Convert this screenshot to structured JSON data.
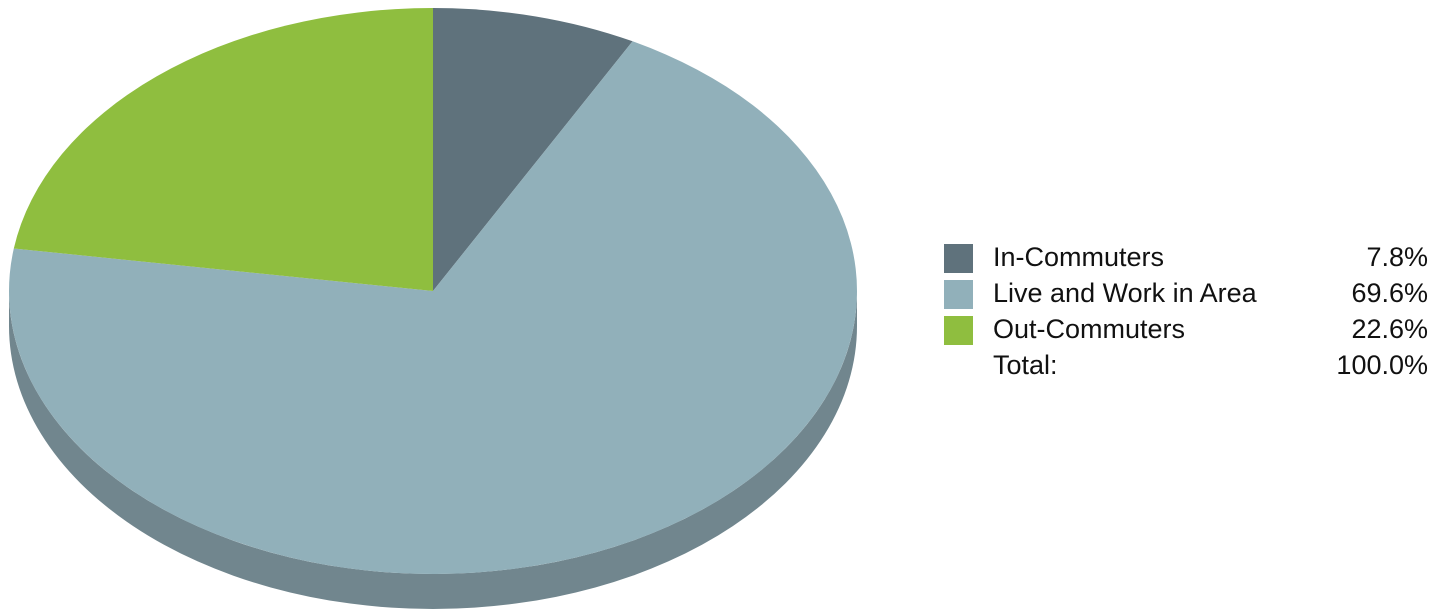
{
  "chart_data": {
    "type": "pie",
    "style": "3d",
    "start_angle_deg": 0,
    "direction": "clockwise",
    "categories": [
      "In-Commuters",
      "Live and Work in Area",
      "Out-Commuters"
    ],
    "values": [
      7.8,
      69.6,
      22.6
    ],
    "value_labels": [
      "7.8%",
      "69.6%",
      "22.6%"
    ],
    "colors": [
      "#5f727c",
      "#91b0ba",
      "#8fbe3f"
    ],
    "side_colors": [
      "#4d5d65",
      "#71868e",
      "#6f9631"
    ],
    "legend": {
      "placement": "right",
      "total_label": "Total:",
      "total_value": "100.0%"
    }
  }
}
